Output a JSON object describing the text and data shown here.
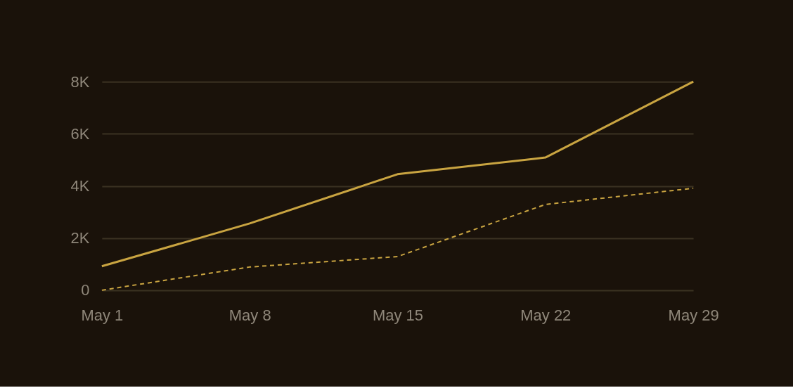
{
  "chart_data": {
    "type": "line",
    "categories": [
      "May 1",
      "May 8",
      "May 15",
      "May 22",
      "May 29"
    ],
    "series": [
      {
        "color": "#c9a441",
        "values": [
          920,
          2560,
          4450,
          5090,
          8000
        ],
        "line_style": "solid"
      },
      {
        "color": "#c9a441",
        "values": [
          0,
          890,
          1290,
          3290,
          3910
        ],
        "line_style": "dashed"
      }
    ],
    "ylim": [
      0,
      8000
    ],
    "yticks": [
      {
        "value": 0,
        "label": "0"
      },
      {
        "value": 2000,
        "label": "2K"
      },
      {
        "value": 4000,
        "label": "4K"
      },
      {
        "value": 6000,
        "label": "6K"
      },
      {
        "value": 8000,
        "label": "8K"
      }
    ],
    "grid": "y",
    "marker": "none"
  }
}
